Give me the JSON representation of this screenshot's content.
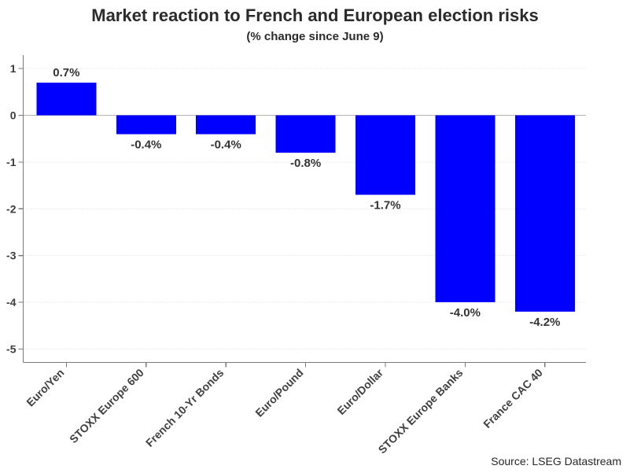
{
  "chart_data": {
    "type": "bar",
    "title": "Market reaction to French and European election risks",
    "subtitle": "(% change since June 9)",
    "source": "Source: LSEG Datastream",
    "categories": [
      "Euro/Yen",
      "STOXX Europe 600",
      "French 10-Yr Bonds",
      "Euro/Pound",
      "Euro/Dollar",
      "STOXX Europe Banks",
      "France CAC 40"
    ],
    "values": [
      0.7,
      -0.4,
      -0.4,
      -0.8,
      -1.7,
      -4.0,
      -4.2
    ],
    "value_labels": [
      "0.7%",
      "-0.4%",
      "-0.4%",
      "-0.8%",
      "-1.7%",
      "-4.0%",
      "-4.2%"
    ],
    "yticks": [
      1,
      0,
      -1,
      -2,
      -3,
      -4,
      -5
    ],
    "ytick_labels": [
      "1",
      "0",
      "-1",
      "-2",
      "-3",
      "-4",
      "-5"
    ],
    "ylim": [
      -5.28,
      1.29
    ],
    "xlabel": "",
    "ylabel": "",
    "legend": "none",
    "grid": "horizontal-dotted",
    "colors": {
      "bar": "#0000fe",
      "axis": "#7a7a7a",
      "zero_line": "#b3b3b3",
      "grid_line": "#dcdcdc",
      "tick_label": "#3d3d3d",
      "value_label": "#333333",
      "category_label": "#404040",
      "title": "#2b2b2b",
      "background": "#ffffff"
    }
  }
}
